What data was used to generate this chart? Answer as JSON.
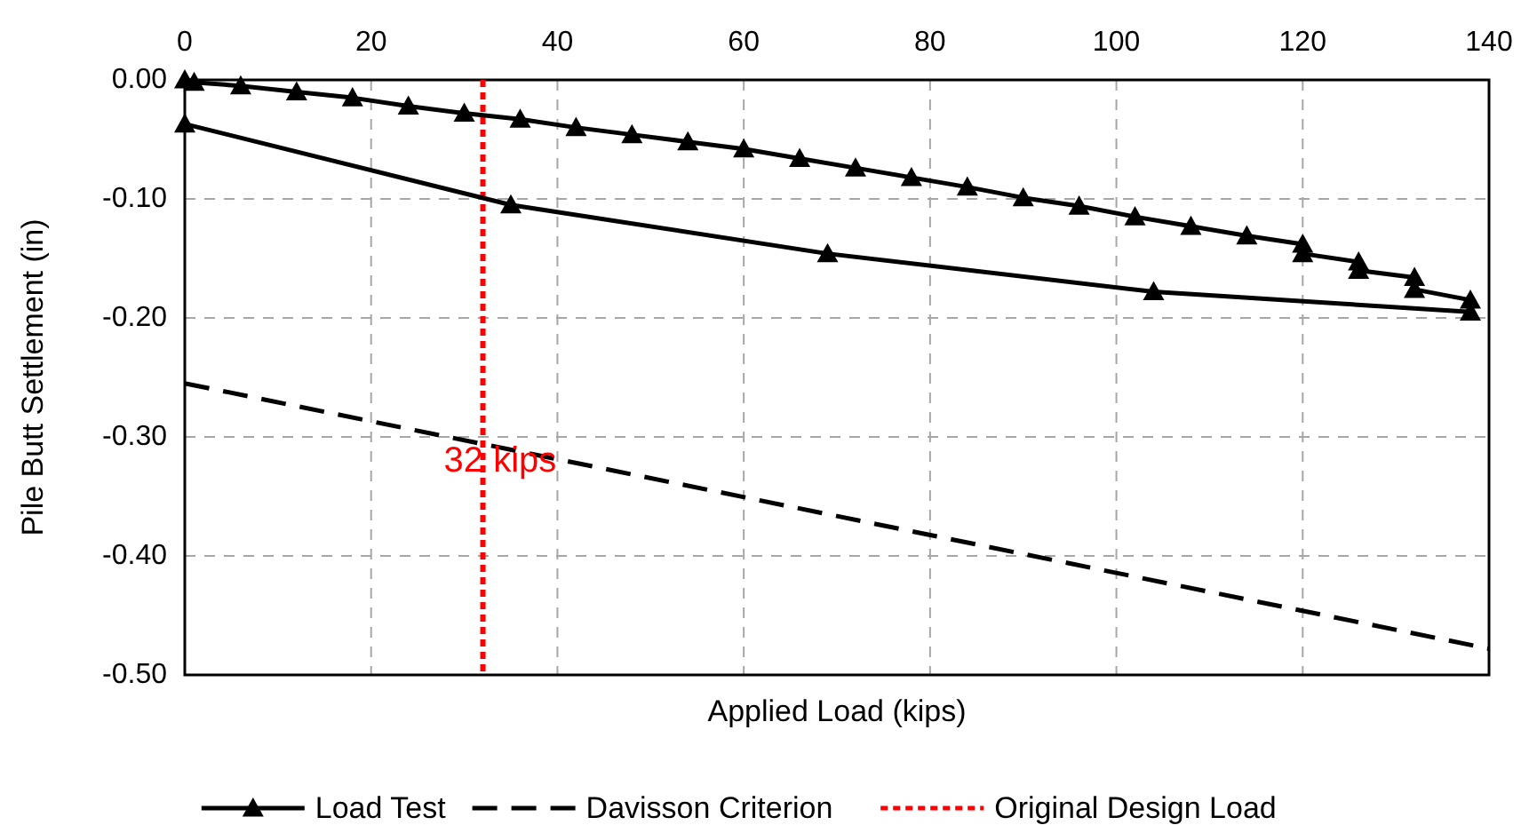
{
  "chart_data": {
    "type": "line",
    "xlabel": "Applied Load (kips)",
    "ylabel": "Pile Butt Settlement (in)",
    "xlim": [
      0,
      140
    ],
    "xticks": [
      0,
      20,
      40,
      60,
      80,
      100,
      120,
      140
    ],
    "ylim": [
      -0.5,
      0
    ],
    "yticks": [
      {
        "value": -0.5,
        "label": "-0.50"
      },
      {
        "value": -0.4,
        "label": "-0.40"
      },
      {
        "value": -0.3,
        "label": "-0.30"
      },
      {
        "value": -0.2,
        "label": "-0.20"
      },
      {
        "value": -0.1,
        "label": "-0.10"
      },
      {
        "value": 0,
        "label": "0.00"
      }
    ],
    "grid": true,
    "legend": "bottom",
    "series": [
      {
        "name": "Load Test",
        "color": "#000000",
        "marker": "triangle",
        "line_style": "solid",
        "x": [
          0,
          1,
          6,
          12,
          18,
          24,
          30,
          36,
          42,
          48,
          54,
          60,
          66,
          72,
          78,
          84,
          90,
          96,
          102,
          108,
          114,
          120,
          120,
          126,
          126,
          132,
          132,
          138,
          138,
          104,
          69,
          35,
          0
        ],
        "values": [
          0,
          -0.002,
          -0.005,
          -0.01,
          -0.015,
          -0.022,
          -0.028,
          -0.033,
          -0.04,
          -0.046,
          -0.052,
          -0.058,
          -0.066,
          -0.074,
          -0.082,
          -0.09,
          -0.099,
          -0.106,
          -0.115,
          -0.123,
          -0.131,
          -0.138,
          -0.146,
          -0.153,
          -0.16,
          -0.166,
          -0.176,
          -0.185,
          -0.195,
          -0.178,
          -0.146,
          -0.105,
          -0.037
        ]
      },
      {
        "name": "Davisson Criterion",
        "color": "#000000",
        "marker": "none",
        "line_style": "dashed",
        "x": [
          0,
          140
        ],
        "values": [
          -0.255,
          -0.478
        ]
      }
    ],
    "ref_lines": [
      {
        "axis": "x",
        "value": 32,
        "label": "Original Design Load",
        "color": "#ff0000",
        "line_style": "dotted"
      }
    ],
    "annotations": [
      {
        "text": "32 kips",
        "x": 32,
        "y": -0.32
      }
    ]
  }
}
